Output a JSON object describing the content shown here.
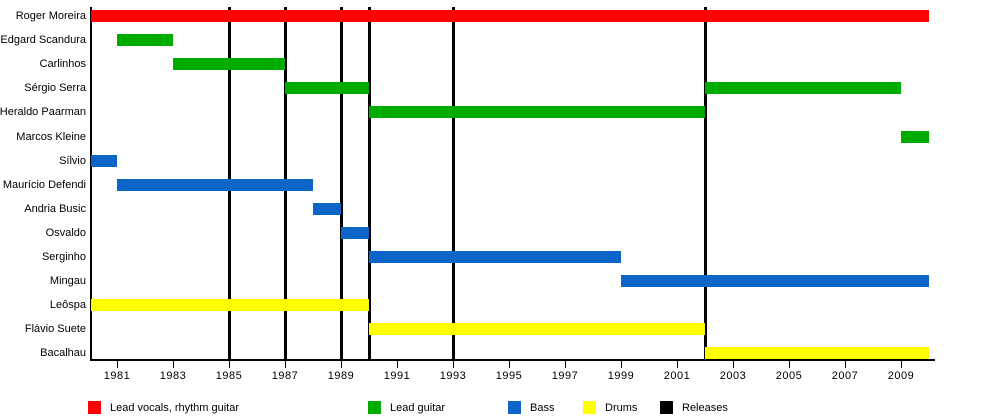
{
  "chart_data": {
    "type": "bar",
    "subtype": "gantt-timeline",
    "title": "",
    "xlabel": "",
    "ylabel": "",
    "x_axis": {
      "min": 1980,
      "max": 2010.2,
      "tick_years": [
        1981,
        1983,
        1985,
        1987,
        1989,
        1991,
        1993,
        1995,
        1997,
        1999,
        2001,
        2003,
        2005,
        2007,
        2009
      ]
    },
    "rows": [
      {
        "name": "Roger Moreira",
        "bars": [
          {
            "role": "Lead vocals, rhythm guitar",
            "start": 1980,
            "end": 2010
          }
        ]
      },
      {
        "name": "Edgard Scandura",
        "bars": [
          {
            "role": "Lead guitar",
            "start": 1981,
            "end": 1983
          }
        ]
      },
      {
        "name": "Carlinhos",
        "bars": [
          {
            "role": "Lead guitar",
            "start": 1983,
            "end": 1987
          }
        ]
      },
      {
        "name": "Sérgio Serra",
        "bars": [
          {
            "role": "Lead guitar",
            "start": 1987,
            "end": 1990
          },
          {
            "role": "Lead guitar",
            "start": 2002,
            "end": 2009
          }
        ]
      },
      {
        "name": "Heraldo Paarman",
        "bars": [
          {
            "role": "Lead guitar",
            "start": 1990,
            "end": 2002
          }
        ]
      },
      {
        "name": "Marcos Kleine",
        "bars": [
          {
            "role": "Lead guitar",
            "start": 2009,
            "end": 2010
          }
        ]
      },
      {
        "name": "Sílvio",
        "bars": [
          {
            "role": "Bass",
            "start": 1980,
            "end": 1981
          }
        ]
      },
      {
        "name": "Maurício Defendi",
        "bars": [
          {
            "role": "Bass",
            "start": 1981,
            "end": 1988
          }
        ]
      },
      {
        "name": "Andria Busic",
        "bars": [
          {
            "role": "Bass",
            "start": 1988,
            "end": 1989
          }
        ]
      },
      {
        "name": "Osvaldo",
        "bars": [
          {
            "role": "Bass",
            "start": 1989,
            "end": 1990
          }
        ]
      },
      {
        "name": "Serginho",
        "bars": [
          {
            "role": "Bass",
            "start": 1990,
            "end": 1999
          }
        ]
      },
      {
        "name": "Mingau",
        "bars": [
          {
            "role": "Bass",
            "start": 1999,
            "end": 2010
          }
        ]
      },
      {
        "name": "Leôspa",
        "bars": [
          {
            "role": "Drums",
            "start": 1980,
            "end": 1990
          }
        ]
      },
      {
        "name": "Flávio Suete",
        "bars": [
          {
            "role": "Drums",
            "start": 1990,
            "end": 2002
          }
        ]
      },
      {
        "name": "Bacalhau",
        "bars": [
          {
            "role": "Drums",
            "start": 2002,
            "end": 2010
          }
        ]
      }
    ],
    "releases": {
      "label": "Releases",
      "years": [
        1985,
        1987,
        1989,
        1990,
        1993,
        2002
      ]
    },
    "role_colors": {
      "Lead vocals, rhythm guitar": "#FF0000",
      "Lead guitar": "#00AB00",
      "Bass": "#0B64C8",
      "Drums": "#FFFF00",
      "Releases": "#000000"
    },
    "legend": [
      {
        "label": "Lead vocals, rhythm guitar",
        "color": "#FF0000"
      },
      {
        "label": "Lead guitar",
        "color": "#00AB00"
      },
      {
        "label": "Bass",
        "color": "#0B64C8"
      },
      {
        "label": "Drums",
        "color": "#FFFF00"
      },
      {
        "label": "Releases",
        "color": "#000000"
      }
    ],
    "legend_position": "bottom",
    "grid": false
  }
}
